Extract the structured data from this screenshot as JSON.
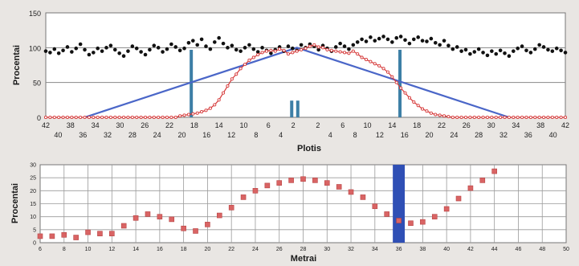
{
  "chart_data": [
    {
      "type": "scatter",
      "xlabel": "Plotis",
      "ylabel": "Procentai",
      "ylim": [
        0,
        150
      ],
      "yticks": [
        0,
        50,
        100,
        150
      ],
      "x_tick_labels_top": [
        "42",
        "38",
        "34",
        "30",
        "26",
        "22",
        "18",
        "14",
        "10",
        "6",
        "2",
        "2",
        "6",
        "10",
        "14",
        "18",
        "22",
        "26",
        "30",
        "34",
        "38",
        "42"
      ],
      "x_tick_labels_bottom": [
        "40",
        "36",
        "32",
        "28",
        "24",
        "20",
        "16",
        "12",
        "8",
        "4",
        "4",
        "8",
        "12",
        "16",
        "20",
        "24",
        "28",
        "32",
        "36",
        "40"
      ],
      "grid": "horizontal",
      "colors": {
        "black_series": "#111111",
        "red_series": "#d63a3a",
        "blue_line": "#4a66c8",
        "bars": "#3d7fa6"
      },
      "series": [
        {
          "kind": "points",
          "color": "black",
          "x": [
            0,
            1,
            2,
            3,
            4,
            5,
            6,
            7,
            8,
            9,
            10,
            11,
            12,
            13,
            14,
            15,
            16,
            17,
            18,
            19,
            20,
            21,
            22,
            23,
            24,
            25,
            26,
            27,
            28,
            29,
            30,
            31,
            32,
            33,
            34,
            35,
            36,
            37,
            38,
            39,
            40,
            41,
            42,
            43,
            44,
            45,
            46,
            47,
            48,
            49,
            50,
            51,
            52,
            53,
            54,
            55,
            56,
            57,
            58,
            59,
            60,
            61,
            62,
            63,
            64,
            65,
            66,
            67,
            68,
            69,
            70,
            71,
            72,
            73,
            74,
            75,
            76,
            77,
            78,
            79,
            80,
            81,
            82,
            83,
            84,
            85,
            86,
            87,
            88,
            89,
            90,
            91,
            92,
            93,
            94,
            95,
            96,
            97,
            98,
            99,
            100,
            101,
            102,
            103,
            104,
            105,
            106,
            107,
            108,
            109,
            110,
            111,
            112,
            113,
            114,
            115,
            116,
            117,
            118,
            119,
            120
          ],
          "y": [
            95,
            93,
            98,
            92,
            96,
            101,
            94,
            99,
            105,
            97,
            90,
            93,
            99,
            95,
            100,
            103,
            97,
            92,
            88,
            95,
            102,
            99,
            94,
            90,
            97,
            103,
            100,
            94,
            98,
            105,
            101,
            96,
            99,
            107,
            110,
            104,
            112,
            102,
            98,
            108,
            114,
            106,
            100,
            103,
            97,
            95,
            100,
            104,
            98,
            94,
            100,
            96,
            92,
            97,
            101,
            95,
            102,
            99,
            96,
            104,
            100,
            105,
            102,
            97,
            103,
            99,
            95,
            101,
            106,
            102,
            98,
            104,
            108,
            112,
            109,
            115,
            110,
            113,
            116,
            112,
            108,
            114,
            116,
            111,
            106,
            112,
            115,
            110,
            109,
            113,
            107,
            104,
            110,
            103,
            98,
            101,
            95,
            97,
            91,
            94,
            98,
            93,
            89,
            95,
            91,
            96,
            92,
            88,
            95,
            99,
            102,
            96,
            93,
            98,
            104,
            101,
            97,
            95,
            99,
            96,
            93
          ]
        },
        {
          "kind": "points",
          "color": "red",
          "x": [
            0,
            1,
            2,
            3,
            4,
            5,
            6,
            7,
            8,
            9,
            10,
            11,
            12,
            13,
            14,
            15,
            16,
            17,
            18,
            19,
            20,
            21,
            22,
            23,
            24,
            25,
            26,
            27,
            28,
            29,
            30,
            31,
            32,
            33,
            34,
            35,
            36,
            37,
            38,
            39,
            40,
            41,
            42,
            43,
            44,
            45,
            46,
            47,
            48,
            49,
            50,
            51,
            52,
            53,
            54,
            55,
            56,
            57,
            58,
            59,
            60,
            61,
            62,
            63,
            64,
            65,
            66,
            67,
            68,
            69,
            70,
            71,
            72,
            73,
            74,
            75,
            76,
            77,
            78,
            79,
            80,
            81,
            82,
            83,
            84,
            85,
            86,
            87,
            88,
            89,
            90,
            91,
            92,
            93,
            94,
            95,
            96,
            97,
            98,
            99,
            100,
            101,
            102,
            103,
            104,
            105,
            106,
            107,
            108,
            109,
            110,
            111,
            112,
            113,
            114,
            115,
            116,
            117,
            118,
            119,
            120
          ],
          "y": [
            0,
            0,
            0,
            0,
            0,
            0,
            0,
            0,
            0,
            0,
            0,
            0,
            0,
            0,
            0,
            0,
            0,
            0,
            0,
            0,
            0,
            0,
            0,
            0,
            0,
            0,
            0,
            0,
            0,
            0,
            0,
            2,
            3,
            4,
            5,
            6,
            8,
            10,
            13,
            18,
            25,
            35,
            45,
            55,
            62,
            70,
            76,
            82,
            86,
            90,
            93,
            95,
            96,
            95,
            98,
            96,
            91,
            93,
            95,
            97,
            99,
            102,
            104,
            101,
            100,
            97,
            96,
            95,
            94,
            93,
            92,
            95,
            91,
            86,
            83,
            80,
            77,
            74,
            70,
            65,
            58,
            50,
            42,
            35,
            28,
            22,
            17,
            12,
            9,
            6,
            4,
            3,
            2,
            1,
            0,
            0,
            0,
            0,
            0,
            0,
            0,
            0,
            0,
            0,
            0,
            0,
            0,
            0,
            0,
            0,
            0,
            0,
            0,
            0,
            0,
            0,
            0,
            0,
            0,
            0,
            0
          ]
        },
        {
          "kind": "line",
          "color": "blue",
          "x": [
            9,
            58,
            107
          ],
          "y": [
            0,
            100,
            0
          ]
        },
        {
          "kind": "bars",
          "color": "steelblue",
          "x": [
            33.6,
            56.8,
            58.2,
            81.8
          ],
          "y": [
            97,
            24,
            24,
            97
          ]
        }
      ]
    },
    {
      "type": "scatter",
      "xlabel": "Metrai",
      "ylabel": "Procentai",
      "ylim": [
        0,
        30
      ],
      "xlim": [
        6,
        50
      ],
      "yticks": [
        0,
        5,
        10,
        15,
        20,
        25,
        30
      ],
      "xticks": [
        6,
        8,
        10,
        12,
        14,
        16,
        18,
        20,
        22,
        24,
        26,
        28,
        30,
        32,
        34,
        36,
        38,
        40,
        42,
        44,
        46,
        48,
        50
      ],
      "grid": "both",
      "highlight_band": [
        35.5,
        36.5
      ],
      "colors": {
        "markers": "#d96464",
        "band": "#2f4fb5"
      },
      "series": [
        {
          "x": [
            6,
            7,
            8,
            9,
            10,
            11,
            12,
            13,
            14,
            15,
            16,
            17,
            18,
            19,
            20,
            21,
            22,
            23,
            24,
            25,
            26,
            27,
            28,
            29,
            30,
            31,
            32,
            33,
            34,
            35,
            36,
            37,
            38,
            39,
            40,
            41,
            42,
            43,
            44
          ],
          "y": [
            2.5,
            2.5,
            3,
            2,
            4,
            3.5,
            3.5,
            6.5,
            9.5,
            11,
            10,
            9,
            5.5,
            4.5,
            7,
            10.5,
            13.5,
            17.5,
            20,
            22,
            23,
            24,
            24.5,
            24,
            23,
            21.5,
            19.5,
            17.5,
            14,
            11,
            8.5,
            7.5,
            8,
            10,
            13,
            17,
            21,
            24,
            27.5
          ]
        }
      ]
    }
  ]
}
